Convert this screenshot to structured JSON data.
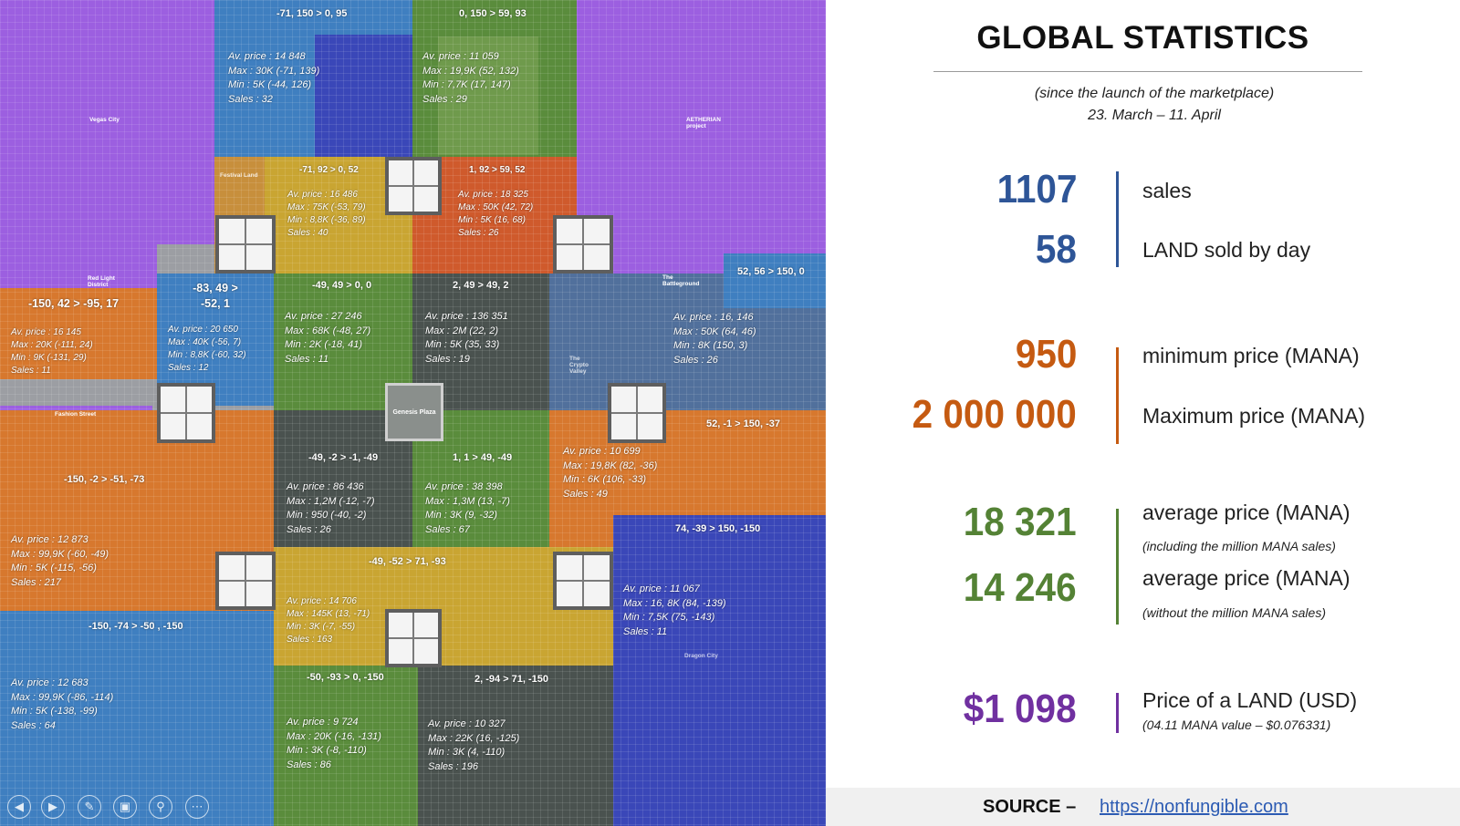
{
  "map": {
    "districts": {
      "vegas_city": "Vegas City",
      "aetherian": "AETHERIAN project",
      "red_light": "Red Light District",
      "fashion_street": "Fashion Street",
      "battleground": "The Battleground",
      "genesis_plaza": "Genesis Plaza",
      "festival_land": "Festival Land",
      "dragon_city": "Dragon City",
      "crypto_valley": "The Crypto Valley"
    },
    "regions": [
      {
        "coord": "-71, 150 > 0, 95",
        "avg": "Av. price : 14 848",
        "max": "Max : 30K (-71, 139)",
        "min": "Min : 5K (-44, 126)",
        "sales": "Sales :  32"
      },
      {
        "coord": "0, 150 > 59, 93",
        "avg": "Av. price : 11 059",
        "max": "Max : 19,9K (52, 132)",
        "min": "Min : 7,7K (17, 147)",
        "sales": "Sales :  29"
      },
      {
        "coord": "-71, 92 > 0, 52",
        "avg": "Av. price : 16 486",
        "max": "Max : 75K (-53, 79)",
        "min": "Min : 8,8K (-36, 89)",
        "sales": "Sales :  40"
      },
      {
        "coord": "1, 92 > 59, 52",
        "avg": "Av. price : 18 325",
        "max": "Max : 50K (42, 72)",
        "min": "Min : 5K (16, 68)",
        "sales": "Sales :  26"
      },
      {
        "coord": "-150, 42 >  -95, 17",
        "avg": "Av. price : 16 145",
        "max": "Max : 20K (-111, 24)",
        "min": "Min : 9K (-131, 29)",
        "sales": "Sales :  11"
      },
      {
        "coord": "-83, 49 > -52, 1",
        "avg": "Av. price : 20 650",
        "max": "Max : 40K (-56, 7)",
        "min": "Min : 8,8K (-60, 32)",
        "sales": "Sales :  12"
      },
      {
        "coord": "-49, 49 > 0, 0",
        "avg": "Av. price : 27 246",
        "max": "Max : 68K (-48, 27)",
        "min": "Min : 2K (-18, 41)",
        "sales": "Sales :  11"
      },
      {
        "coord": "2, 49 > 49, 2",
        "avg": "Av. price : 136 351",
        "max": "Max : 2M (22, 2)",
        "min": "Min : 5K (35, 33)",
        "sales": "Sales :  19"
      },
      {
        "coord": "52, 56 > 150, 0",
        "avg": "Av. price : 16, 146",
        "max": "Max : 50K (64, 46)",
        "min": "Min : 8K (150, 3)",
        "sales": "Sales :  26"
      },
      {
        "coord": "-150, -2 >  -51, -73",
        "avg": "Av. price : 12 873",
        "max": "Max : 99,9K (-60, -49)",
        "min": "Min : 5K (-115, -56)",
        "sales": "Sales :  217"
      },
      {
        "coord": "-49, -2 > -1, -49",
        "avg": "Av. price : 86 436",
        "max": "Max : 1,2M (-12, -7)",
        "min": "Min : 950 (-40, -2)",
        "sales": "Sales :  26"
      },
      {
        "coord": "1, 1 > 49, -49",
        "avg": "Av. price : 38 398",
        "max": "Max : 1,3M (13, -7)",
        "min": "Min : 3K (9, -32)",
        "sales": "Sales :  67"
      },
      {
        "coord": "52, -1 > 150, -37",
        "avg": "Av. price : 10 699",
        "max": "Max : 19,8K (82, -36)",
        "min": "Min : 6K (106, -33)",
        "sales": "Sales :  49"
      },
      {
        "coord": "-49, -52 > 71, -93",
        "avg": "Av. price : 14 706",
        "max": "Max : 145K (13, -71)",
        "min": "Min : 3K (-7, -55)",
        "sales": "Sales :  163"
      },
      {
        "coord": "74, -39 > 150, -150",
        "avg": "Av. price : 11 067",
        "max": "Max : 16, 8K (84, -139)",
        "min": "Min : 7,5K (75, -143)",
        "sales": "Sales :  11"
      },
      {
        "coord": "-150, -74 > -50 , -150",
        "avg": "Av. price : 12 683",
        "max": "Max : 99,9K (-86, -114)",
        "min": "Min : 5K (-138, -99)",
        "sales": "Sales :  64"
      },
      {
        "coord": "-50, -93 > 0, -150",
        "avg": "Av. price : 9 724",
        "max": "Max : 20K (-16, -131)",
        "min": "Min : 3K (-8, -110)",
        "sales": "Sales :  86"
      },
      {
        "coord": "2, -94 > 71, -150",
        "avg": "Av. price : 10 327",
        "max": "Max : 22K (16, -125)",
        "min": "Min : 3K (4, -110)",
        "sales": "Sales :  196"
      }
    ],
    "controls": [
      "back-icon",
      "forward-icon",
      "pen-icon",
      "pages-icon",
      "zoom-icon",
      "more-icon"
    ]
  },
  "panel": {
    "title": "GLOBAL STATISTICS",
    "subtitle": "(since the launch of the marketplace)",
    "dates": "23. March – 11. April",
    "stats": [
      {
        "value": "1107",
        "label": "sales",
        "color": "#2e5597"
      },
      {
        "value": "58",
        "label": "LAND sold by day",
        "color": "#2e5597"
      },
      {
        "value": "950",
        "label": "minimum price (MANA)",
        "color": "#c55a11"
      },
      {
        "value": "2 000 000",
        "label": "Maximum price (MANA)",
        "color": "#c55a11"
      },
      {
        "value": "18 321",
        "label": "average price (MANA)",
        "note": "(including the million MANA sales)",
        "color": "#548235"
      },
      {
        "value": "14 246",
        "label": "average price (MANA)",
        "note": "(without the million MANA sales)",
        "color": "#548235"
      },
      {
        "value": "$1 098",
        "label": "Price of a LAND (USD)",
        "note": "(04.11 MANA value – $0.076331)",
        "color": "#7030a0"
      }
    ],
    "source_label": "SOURCE –",
    "source_link": "https://nonfungible.com"
  }
}
